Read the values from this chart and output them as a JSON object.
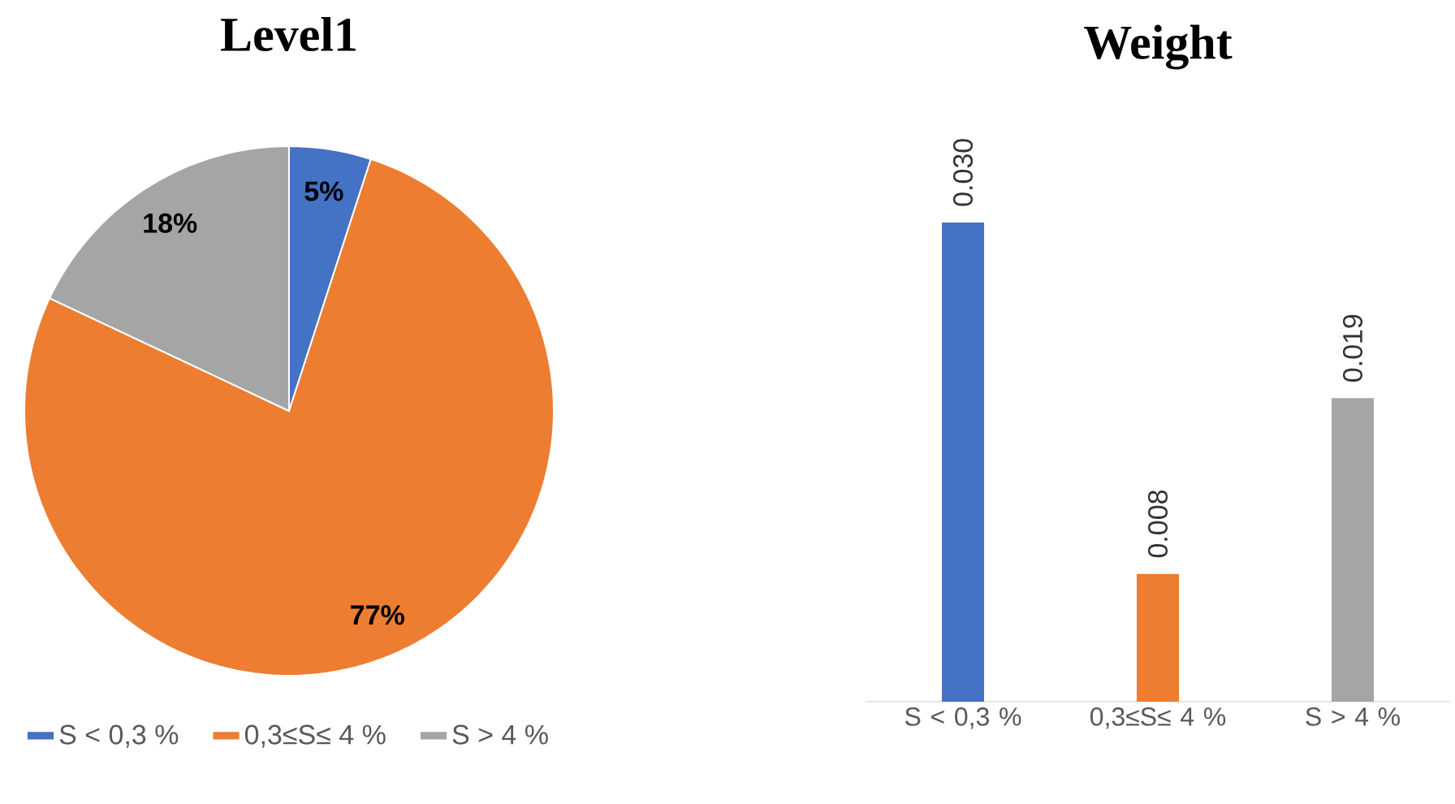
{
  "chart_data": [
    {
      "type": "pie",
      "title": "Level1",
      "categories": [
        "S < 0,3 %",
        "0,3≤S≤ 4 %",
        "S > 4 %"
      ],
      "values": [
        5,
        77,
        18
      ],
      "colors": [
        "#4472c4",
        "#ed7d31",
        "#a5a5a5"
      ],
      "value_labels": [
        "5%",
        "77%",
        "18%"
      ],
      "legend": "bottom"
    },
    {
      "type": "bar",
      "title": "Weight",
      "categories": [
        "S < 0,3 %",
        "0,3≤S≤ 4 %",
        "S > 4 %"
      ],
      "values": [
        0.03,
        0.008,
        0.019
      ],
      "colors": [
        "#4472c4",
        "#ed7d31",
        "#a5a5a5"
      ],
      "value_labels": [
        "0.030",
        "0.008",
        "0.019"
      ]
    }
  ]
}
